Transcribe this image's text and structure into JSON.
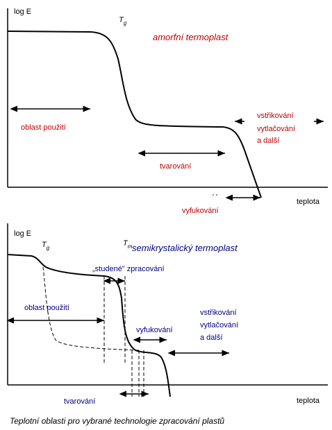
{
  "top_panel": {
    "y_axis_label": "log E",
    "x_axis_label": "teplota",
    "tg": {
      "base": "T",
      "sub": "g"
    },
    "title": "amorfní termoplast",
    "usage": "oblast použití",
    "forming": "tvarování",
    "injection": [
      "vstřikování",
      "vytlačování",
      "a další"
    ],
    "blowing": "vyfukování"
  },
  "bottom_panel": {
    "y_axis_label": "log E",
    "x_axis_label": "teplota",
    "tg": {
      "base": "T",
      "sub": "g"
    },
    "tm": {
      "base": "T",
      "sub": "m"
    },
    "title": "semikrystalický termoplast",
    "cold": "„studené\" zpracování",
    "usage": "oblast použití",
    "blowing": "vyfukování",
    "injection": [
      "vstřikování",
      "vytlačování",
      "a další"
    ],
    "forming": "tvarování"
  },
  "caption": "Teplotní oblasti pro vybrané technologie zpracování plastů"
}
